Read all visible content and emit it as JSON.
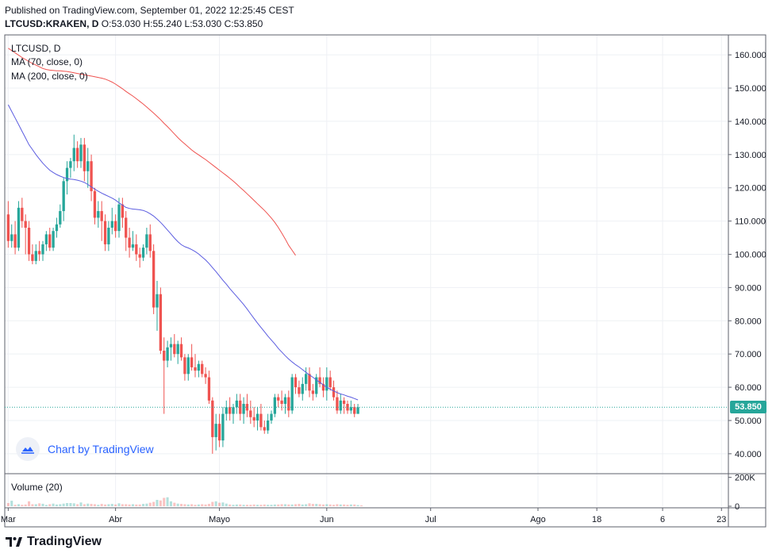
{
  "header": {
    "published": "Published on TradingView.com, September 01, 2022 12:25:45 CEST",
    "symbol": "LTCUSD:KRAKEN, D",
    "ohlc": "O:53.030 H:55.240 L:53.030 C:53.850"
  },
  "legend": {
    "symbol": "LTCUSD, D",
    "ma70": "MA (70, close, 0)",
    "ma200": "MA (200, close, 0)",
    "volume": "Volume (20)"
  },
  "attribution": "Chart by TradingView",
  "footer": {
    "brand": "TradingView"
  },
  "colors": {
    "up": "#26a69a",
    "down": "#ef5350",
    "ma70": "#5b5ce0",
    "ma200": "#ef5350",
    "grid": "#eef0f4",
    "last_price": "#26a69a"
  },
  "chart_data": {
    "type": "candlestick",
    "last_price_label": "53.850",
    "y_ticks": [
      "160.000",
      "150.000",
      "140.000",
      "130.000",
      "120.000",
      "110.000",
      "100.000",
      "90.000",
      "80.000",
      "70.000",
      "60.000",
      "50.000",
      "40.000"
    ],
    "y_tick_values": [
      160,
      150,
      140,
      130,
      120,
      110,
      100,
      90,
      80,
      70,
      60,
      50,
      40
    ],
    "ylim": [
      34,
      166
    ],
    "volume_ticks": [
      "200K",
      "0"
    ],
    "volume_ylim": [
      0,
      220
    ],
    "x_ticks": [
      {
        "label": "Mar",
        "day": 0
      },
      {
        "label": "Abr",
        "day": 31
      },
      {
        "label": "Mayo",
        "day": 61
      },
      {
        "label": "Jun",
        "day": 92
      },
      {
        "label": "Jul",
        "day": 122
      },
      {
        "label": "Ago",
        "day": 153
      },
      {
        "label": "18",
        "day": 170
      },
      {
        "label": "6",
        "day": 189
      },
      {
        "label": "23",
        "day": 206
      }
    ],
    "x_range": [
      -1,
      208
    ],
    "candles": [
      [
        112,
        116,
        102,
        104
      ],
      [
        104,
        109,
        102,
        106
      ],
      [
        106,
        110,
        100,
        102
      ],
      [
        102,
        116,
        101,
        114
      ],
      [
        114,
        117,
        108,
        110
      ],
      [
        110,
        112,
        100,
        108
      ],
      [
        108,
        110,
        98,
        100
      ],
      [
        100,
        103,
        97,
        98
      ],
      [
        98,
        103,
        97,
        101
      ],
      [
        101,
        104,
        98,
        100
      ],
      [
        100,
        104,
        98,
        103
      ],
      [
        103,
        107,
        101,
        106
      ],
      [
        106,
        108,
        101,
        102
      ],
      [
        102,
        108,
        101,
        107
      ],
      [
        107,
        111,
        105,
        109
      ],
      [
        109,
        115,
        108,
        113
      ],
      [
        113,
        123,
        110,
        122
      ],
      [
        122,
        128,
        118,
        126
      ],
      [
        126,
        129,
        123,
        128
      ],
      [
        128,
        136,
        125,
        132
      ],
      [
        132,
        134,
        126,
        128
      ],
      [
        128,
        135,
        126,
        133
      ],
      [
        133,
        135,
        122,
        125
      ],
      [
        125,
        132,
        120,
        128
      ],
      [
        128,
        130,
        116,
        119
      ],
      [
        119,
        120,
        109,
        111
      ],
      [
        111,
        116,
        108,
        113
      ],
      [
        113,
        116,
        104,
        110
      ],
      [
        110,
        112,
        101,
        103
      ],
      [
        103,
        110,
        101,
        108
      ],
      [
        108,
        114,
        106,
        110
      ],
      [
        110,
        112,
        105,
        107
      ],
      [
        107,
        117,
        105,
        115
      ],
      [
        115,
        117,
        108,
        111
      ],
      [
        111,
        113,
        101,
        105
      ],
      [
        105,
        108,
        99,
        102
      ],
      [
        102,
        107,
        101,
        103
      ],
      [
        103,
        106,
        98,
        100
      ],
      [
        100,
        102,
        96,
        99
      ],
      [
        99,
        103,
        98,
        102
      ],
      [
        102,
        108,
        100,
        106
      ],
      [
        106,
        109,
        99,
        101
      ],
      [
        101,
        103,
        82,
        84
      ],
      [
        84,
        92,
        77,
        88
      ],
      [
        88,
        90,
        70,
        71
      ],
      [
        71,
        75,
        52,
        68
      ],
      [
        68,
        74,
        66,
        72
      ],
      [
        72,
        75,
        68,
        73
      ],
      [
        73,
        76,
        69,
        70
      ],
      [
        70,
        74,
        67,
        73
      ],
      [
        73,
        75,
        68,
        69
      ],
      [
        69,
        70,
        62,
        64
      ],
      [
        64,
        70,
        62,
        69
      ],
      [
        69,
        73,
        65,
        66
      ],
      [
        66,
        70,
        63,
        65
      ],
      [
        65,
        68,
        63,
        67
      ],
      [
        67,
        68,
        63,
        64
      ],
      [
        64,
        66,
        61,
        63
      ],
      [
        63,
        65,
        55,
        56
      ],
      [
        56,
        57,
        40,
        45
      ],
      [
        45,
        52,
        41,
        49
      ],
      [
        49,
        52,
        42,
        44
      ],
      [
        44,
        54,
        42,
        52
      ],
      [
        52,
        56,
        50,
        54
      ],
      [
        54,
        57,
        50,
        52
      ],
      [
        52,
        55,
        49,
        54
      ],
      [
        54,
        58,
        52,
        56
      ],
      [
        56,
        58,
        50,
        52
      ],
      [
        52,
        57,
        49,
        55
      ],
      [
        55,
        58,
        51,
        53
      ],
      [
        53,
        56,
        49,
        51
      ],
      [
        51,
        54,
        48,
        50
      ],
      [
        50,
        54,
        47,
        52
      ],
      [
        52,
        55,
        47,
        48
      ],
      [
        48,
        50,
        46,
        47
      ],
      [
        47,
        52,
        46,
        50
      ],
      [
        50,
        53,
        49,
        52
      ],
      [
        52,
        58,
        51,
        57
      ],
      [
        57,
        58,
        54,
        56
      ],
      [
        56,
        59,
        53,
        55
      ],
      [
        55,
        58,
        52,
        57
      ],
      [
        57,
        59,
        51,
        53
      ],
      [
        53,
        64,
        52,
        63
      ],
      [
        63,
        64,
        58,
        60
      ],
      [
        60,
        62,
        57,
        58
      ],
      [
        58,
        63,
        56,
        61
      ],
      [
        61,
        66,
        59,
        64
      ],
      [
        64,
        66,
        57,
        59
      ],
      [
        59,
        61,
        56,
        58
      ],
      [
        58,
        64,
        57,
        63
      ],
      [
        63,
        66,
        60,
        61
      ],
      [
        61,
        63,
        57,
        59
      ],
      [
        59,
        66,
        56,
        63
      ],
      [
        63,
        65,
        59,
        60
      ],
      [
        60,
        62,
        56,
        57
      ],
      [
        57,
        59,
        52,
        53
      ],
      [
        53,
        58,
        52,
        56
      ],
      [
        56,
        57,
        52,
        55
      ],
      [
        55,
        56,
        52,
        53
      ],
      [
        53,
        56,
        52,
        54
      ],
      [
        54,
        55,
        51,
        52
      ],
      [
        52,
        55,
        52,
        54
      ]
    ],
    "volumes": [
      22,
      38,
      10,
      14,
      10,
      12,
      34,
      14,
      14,
      20,
      17,
      9,
      14,
      18,
      12,
      14,
      18,
      22,
      22,
      20,
      14,
      26,
      14,
      18,
      16,
      14,
      10,
      16,
      12,
      14,
      16,
      12,
      20,
      14,
      14,
      12,
      14,
      12,
      12,
      16,
      18,
      24,
      30,
      44,
      40,
      58,
      62,
      34,
      24,
      18,
      16,
      14,
      12,
      14,
      10,
      12,
      14,
      12,
      16,
      30,
      34,
      24,
      26,
      18,
      12,
      10,
      12,
      12,
      10,
      10,
      10,
      12,
      10,
      10,
      12,
      10,
      10,
      12,
      12,
      14,
      14,
      12,
      12,
      14,
      16,
      12,
      14,
      20,
      16,
      16,
      14,
      12,
      14,
      12,
      10,
      14,
      12,
      12,
      10,
      12,
      12,
      8,
      6
    ],
    "ma70": {
      "start_day": 0,
      "values": [
        145,
        143,
        141,
        139,
        137,
        135,
        133,
        131.5,
        130,
        128.7,
        127.4,
        126.3,
        125.3,
        124.6,
        124,
        123.5,
        123.1,
        122.8,
        122.6,
        122.5,
        122.3,
        122,
        121.6,
        121,
        120.3,
        119.6,
        119,
        118.4,
        117.9,
        117.4,
        116.9,
        116.3,
        115.5,
        114.8,
        114.1,
        113.8,
        113.6,
        113.5,
        113.4,
        113.2,
        112.8,
        112.2,
        111.5,
        110.6,
        109.6,
        108.5,
        107.3,
        106.1,
        104.9,
        103.8,
        102.9,
        102.3,
        101.9,
        101.4,
        100.8,
        100.1,
        99.2,
        98.3,
        97.2,
        96,
        94.8,
        93.5,
        92.2,
        91,
        89.7,
        88.5,
        87.3,
        86.1,
        84.9,
        83.5,
        82.1,
        80.7,
        79.3,
        78,
        76.7,
        75.4,
        74.2,
        73,
        71.7,
        70.6,
        69.5,
        68.5,
        67.6,
        66.8,
        66.1,
        65.3,
        64.5,
        63.7,
        63,
        62.2,
        61.5,
        60.7,
        60,
        59.4,
        58.9,
        58.4,
        58,
        57.7,
        57.3,
        57,
        56.6,
        56.2
      ]
    },
    "ma200": {
      "start_day": 0,
      "values": [
        162,
        161.3,
        160.6,
        159.9,
        159.2,
        158.6,
        158,
        157.4,
        156.9,
        156.4,
        155.9,
        155.6,
        155.4,
        155.3,
        155.2,
        155.2,
        155.1,
        155,
        154.8,
        154.6,
        154.4,
        154.2,
        154,
        153.8,
        153.6,
        153.4,
        153.2,
        153,
        152.7,
        152.3,
        151.8,
        151.2,
        150.5,
        149.8,
        149,
        148.3,
        147.6,
        146.8,
        146,
        145.2,
        144.3,
        143.4,
        142.5,
        141.5,
        140.5,
        139.4,
        138.4,
        137.3,
        136.2,
        135.1,
        134.1,
        133.2,
        132.3,
        131.4,
        130.6,
        129.9,
        129.2,
        128.5,
        127.7,
        126.9,
        126.1,
        125.3,
        124.5,
        123.7,
        122.9,
        122,
        121.1,
        120.1,
        119.2,
        118.2,
        117.2,
        116.2,
        115.2,
        114.2,
        113.2,
        112.1,
        110.9,
        109.6,
        108.1,
        106.4,
        104.6,
        102.7,
        101.2,
        99.7
      ]
    }
  }
}
